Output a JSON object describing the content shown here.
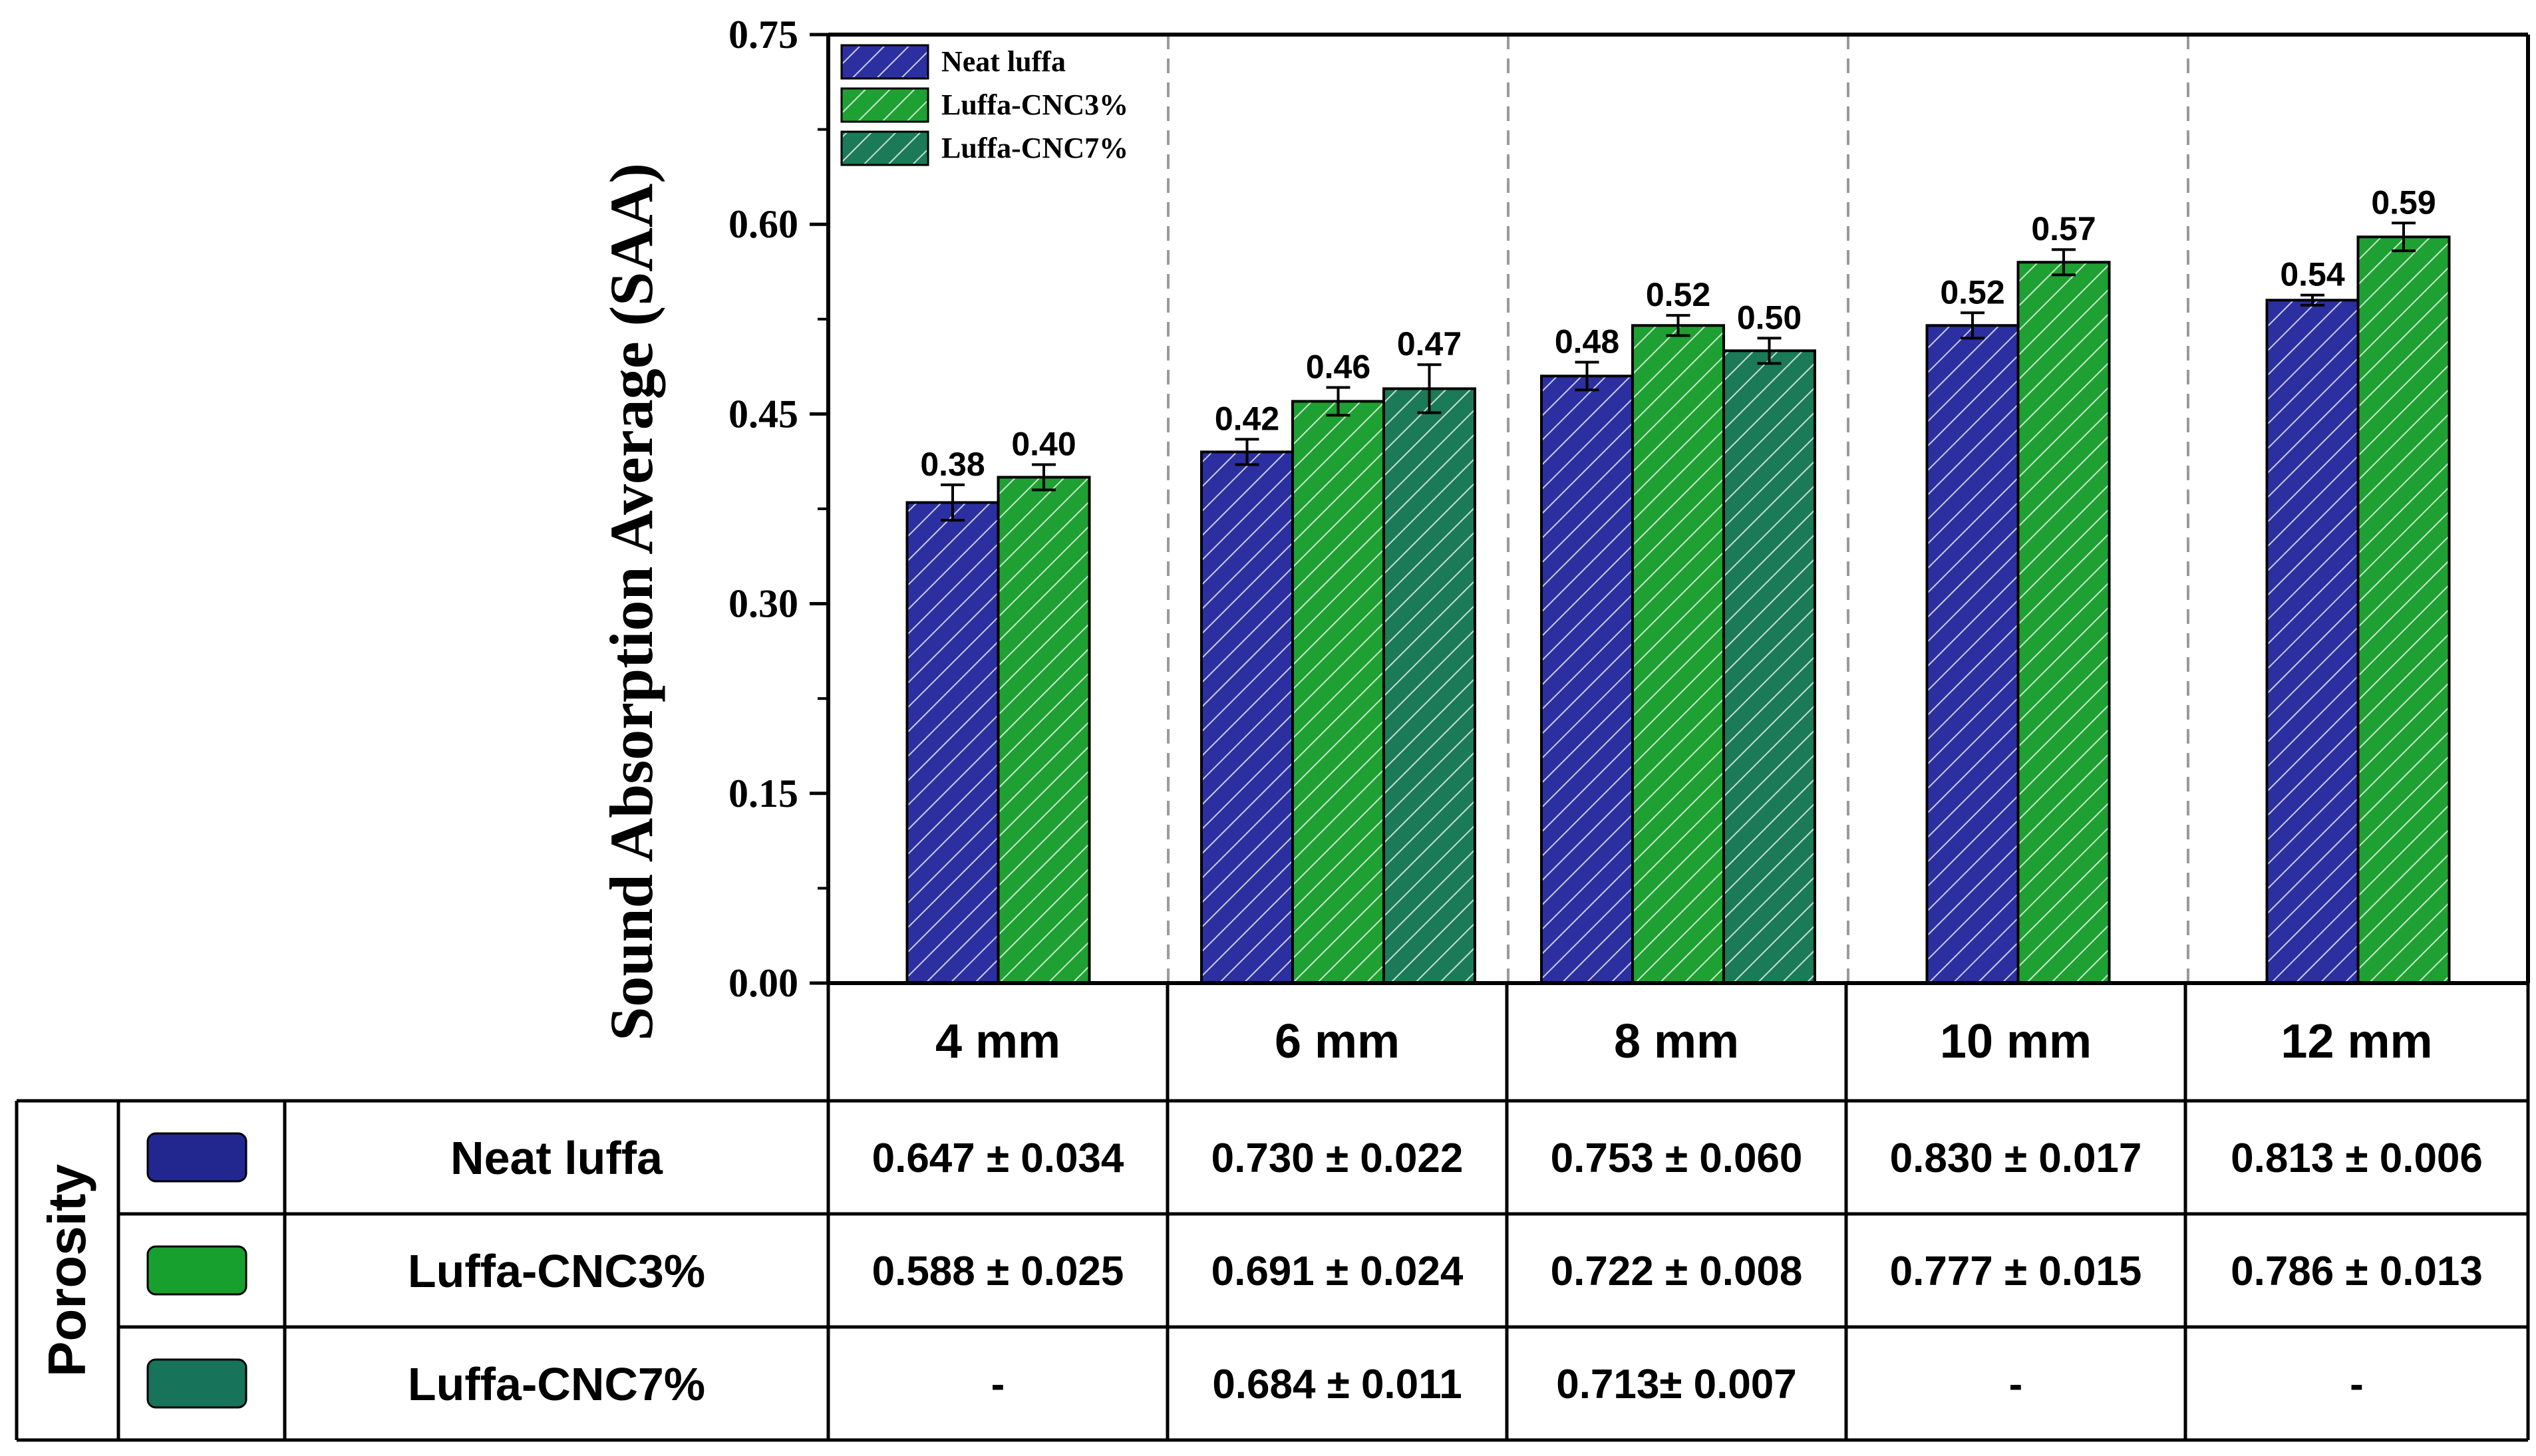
{
  "chart_data": {
    "type": "bar",
    "ylabel": "Sound Absorption Average (SAA)",
    "ylim": [
      0,
      0.75
    ],
    "yticks": [
      "0.00",
      "0.15",
      "0.30",
      "0.45",
      "0.60",
      "0.75"
    ],
    "categories": [
      "4 mm",
      "6 mm",
      "8 mm",
      "10 mm",
      "12 mm"
    ],
    "grid": "dashed vertical separators between categories",
    "legend_position": "top-left",
    "series": [
      {
        "name": "Neat luffa",
        "color": "#2B2FA0",
        "hatched": true,
        "values": [
          0.38,
          0.42,
          0.48,
          0.52,
          0.54
        ],
        "labels": [
          "0.38",
          "0.42",
          "0.48",
          "0.52",
          "0.54"
        ],
        "errors": [
          0.014,
          0.01,
          0.011,
          0.01,
          0.004
        ]
      },
      {
        "name": "Luffa-CNC3%",
        "color": "#1FA032",
        "hatched": true,
        "values": [
          0.4,
          0.46,
          0.52,
          0.57,
          0.59
        ],
        "labels": [
          "0.40",
          "0.46",
          "0.52",
          "0.57",
          "0.59"
        ],
        "errors": [
          0.01,
          0.011,
          0.008,
          0.01,
          0.011
        ]
      },
      {
        "name": "Luffa-CNC7%",
        "color": "#1B7A58",
        "hatched": true,
        "values": [
          null,
          0.47,
          0.5,
          null,
          null
        ],
        "labels": [
          "",
          "0.47",
          "0.50",
          "",
          ""
        ],
        "errors": [
          null,
          0.019,
          0.01,
          null,
          null
        ]
      }
    ]
  },
  "table": {
    "row_header": "Porosity",
    "columns": [
      "4 mm",
      "6 mm",
      "8 mm",
      "10 mm",
      "12 mm"
    ],
    "rows": [
      {
        "label": "Neat luffa",
        "swatch": "#22268F",
        "cells": [
          "0.647 ± 0.034",
          "0.730 ± 0.022",
          "0.753 ± 0.060",
          "0.830 ± 0.017",
          "0.813 ± 0.006"
        ]
      },
      {
        "label": "Luffa-CNC3%",
        "swatch": "#18A02E",
        "cells": [
          "0.588 ± 0.025",
          "0.691 ± 0.024",
          "0.722 ± 0.008",
          "0.777 ± 0.015",
          "0.786 ± 0.013"
        ]
      },
      {
        "label": "Luffa-CNC7%",
        "swatch": "#17735A",
        "cells": [
          "-",
          "0.684 ± 0.011",
          "0.713± 0.007",
          "-",
          "-"
        ]
      }
    ]
  }
}
